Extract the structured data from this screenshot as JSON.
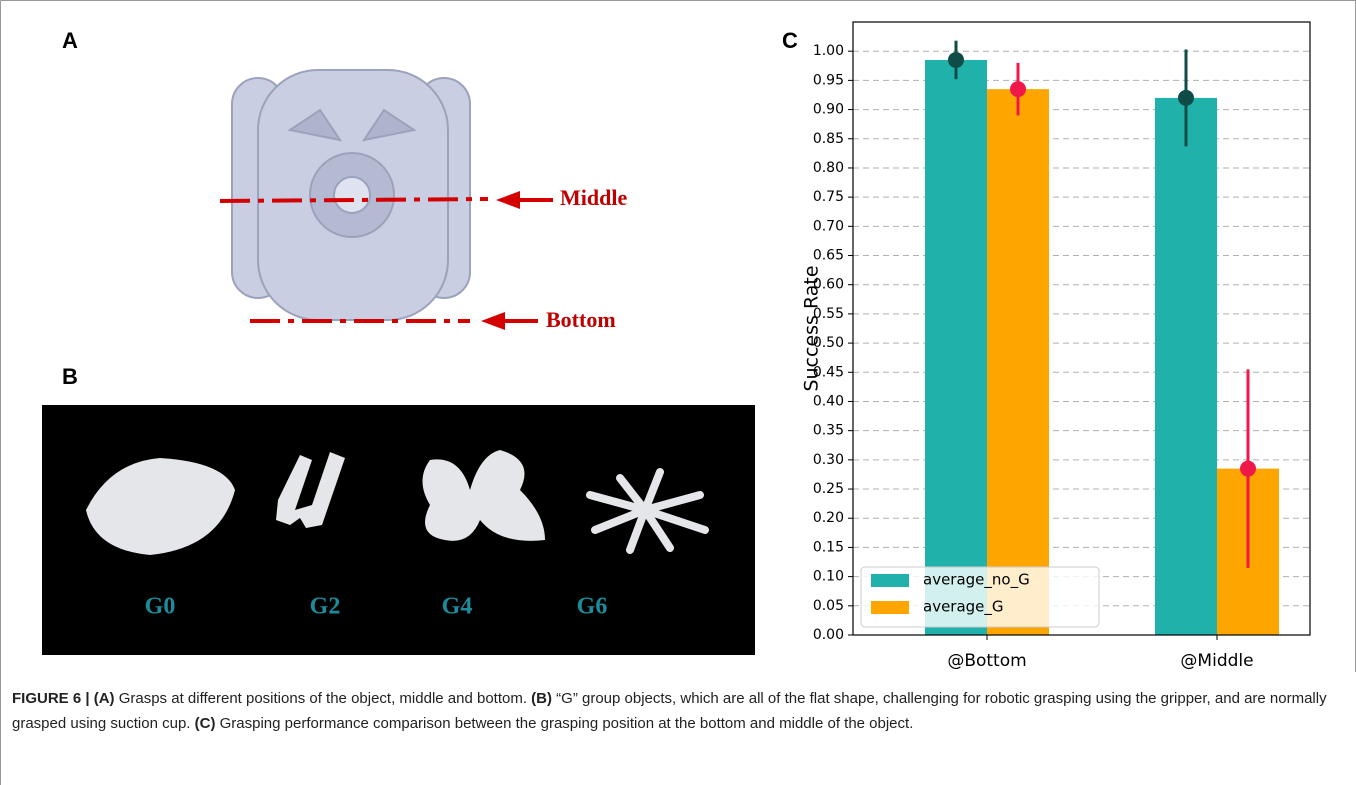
{
  "panel_a": {
    "label": "A",
    "middle": "Middle",
    "bottom": "Bottom"
  },
  "panel_b": {
    "label": "B",
    "objects": [
      "G0",
      "G2",
      "G4",
      "G6"
    ]
  },
  "panel_c": {
    "label": "C"
  },
  "chart_data": {
    "type": "bar",
    "categories": [
      "@Bottom",
      "@Middle"
    ],
    "ylabel": "Success Rate",
    "series": [
      {
        "name": "average_no_G",
        "color": "#20b2aa",
        "error_color": "#0f4b47",
        "values": [
          0.985,
          0.92
        ],
        "errors": [
          0.033,
          0.083
        ]
      },
      {
        "name": "average_G",
        "color": "#ffa500",
        "error_color": "#f0184a",
        "values": [
          0.935,
          0.285
        ],
        "errors": [
          0.045,
          0.17
        ]
      }
    ],
    "ylim": [
      0,
      1.05
    ],
    "yticks": [
      {
        "value": 0,
        "label": "0.00"
      },
      {
        "value": 0.05,
        "label": "0.05"
      },
      {
        "value": 0.1,
        "label": "0.10"
      },
      {
        "value": 0.15,
        "label": "0.15"
      },
      {
        "value": 0.2,
        "label": "0.20"
      },
      {
        "value": 0.25,
        "label": "0.25"
      },
      {
        "value": 0.3,
        "label": "0.30"
      },
      {
        "value": 0.35,
        "label": "0.35"
      },
      {
        "value": 0.4,
        "label": "0.40"
      },
      {
        "value": 0.45,
        "label": "0.45"
      },
      {
        "value": 0.5,
        "label": "0.50"
      },
      {
        "value": 0.55,
        "label": "0.55"
      },
      {
        "value": 0.6,
        "label": "0.60"
      },
      {
        "value": 0.65,
        "label": "0.65"
      },
      {
        "value": 0.7,
        "label": "0.70"
      },
      {
        "value": 0.75,
        "label": "0.75"
      },
      {
        "value": 0.8,
        "label": "0.80"
      },
      {
        "value": 0.85,
        "label": "0.85"
      },
      {
        "value": 0.9,
        "label": "0.90"
      },
      {
        "value": 0.95,
        "label": "0.95"
      },
      {
        "value": 1,
        "label": "1.00"
      }
    ],
    "grid": true,
    "legend": "lower left"
  },
  "caption": {
    "parts": [
      "FIGURE 6 | (A)",
      " Grasps at different positions of the object, middle and bottom. ",
      "(B)",
      " “G” group objects, which are all of the flat shape, challenging for robotic grasping using the gripper, and are normally grasped using suction cup. ",
      "(C)",
      " Grasping performance comparison between the grasping position at the bottom and middle of the object."
    ]
  }
}
